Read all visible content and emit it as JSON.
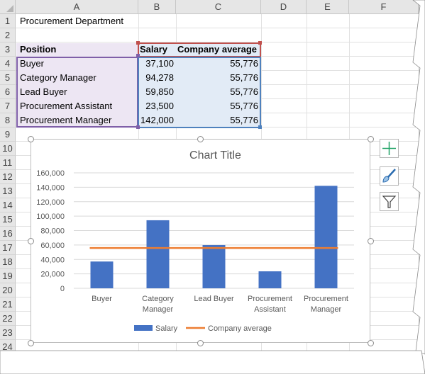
{
  "spreadsheet": {
    "columns": [
      "A",
      "B",
      "C",
      "D",
      "E",
      "F"
    ],
    "rows": [
      "1",
      "2",
      "3",
      "4",
      "5",
      "6",
      "7",
      "8",
      "9",
      "10",
      "11",
      "12",
      "13",
      "14",
      "15",
      "16",
      "17",
      "18",
      "19",
      "20",
      "21",
      "22",
      "23",
      "24"
    ],
    "a1_title": "Procurement Department",
    "header": {
      "position": "Position",
      "salary": "Salary",
      "company_average": "Company average"
    },
    "data_rows": [
      {
        "position": "Buyer",
        "salary": "37,100",
        "company_average": "55,776"
      },
      {
        "position": "Category Manager",
        "salary": "94,278",
        "company_average": "55,776"
      },
      {
        "position": "Lead Buyer",
        "salary": "59,850",
        "company_average": "55,776"
      },
      {
        "position": "Procurement Assistant",
        "salary": "23,500",
        "company_average": "55,776"
      },
      {
        "position": "Procurement Manager",
        "salary": "142,000",
        "company_average": "55,776"
      }
    ]
  },
  "chart_data": {
    "type": "bar",
    "title": "Chart Title",
    "categories": [
      "Buyer",
      "Category Manager",
      "Lead Buyer",
      "Procurement Assistant",
      "Procurement Manager"
    ],
    "category_lines": [
      [
        "Buyer"
      ],
      [
        "Category",
        "Manager"
      ],
      [
        "Lead Buyer"
      ],
      [
        "Procurement",
        "Assistant"
      ],
      [
        "Procurement",
        "Manager"
      ]
    ],
    "series": [
      {
        "name": "Salary",
        "type": "bar",
        "values": [
          37100,
          94278,
          59850,
          23500,
          142000
        ],
        "color": "#4472c4"
      },
      {
        "name": "Company average",
        "type": "line",
        "values": [
          55776,
          55776,
          55776,
          55776,
          55776
        ],
        "color": "#ed7d31"
      }
    ],
    "ylim": [
      0,
      160000
    ],
    "yticks": [
      "0",
      "20,000",
      "40,000",
      "60,000",
      "80,000",
      "100,000",
      "120,000",
      "140,000",
      "160,000"
    ],
    "grid": true,
    "legend_position": "bottom"
  },
  "chart_tools": {
    "buttons": [
      "plus-icon",
      "brush-icon",
      "filter-icon"
    ],
    "accent": "#21a366"
  },
  "colors": {
    "position_range": "#7f5fa8",
    "salary_range": "#c0504d",
    "average_range": "#4f81bd"
  }
}
